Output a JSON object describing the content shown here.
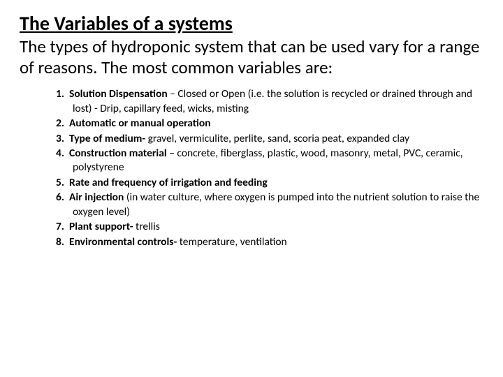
{
  "title": "The Variables of a systems",
  "intro": "The types of hydroponic system that can be used vary for a range of reasons. The most common variables are:",
  "items": [
    {
      "num": "1.",
      "lead": "Solution Dispensation",
      "rest": " – Closed or Open (i.e. the solution is recycled or drained through and lost) - Drip, capillary feed, wicks, misting"
    },
    {
      "num": "2.",
      "lead": "Automatic or manual operation",
      "rest": ""
    },
    {
      "num": "3.",
      "lead": "Type of medium-",
      "rest": " gravel, vermiculite, perlite, sand, scoria peat, expanded clay"
    },
    {
      "num": "4.",
      "lead": "Construction material",
      "rest": " – concrete, fiberglass, plastic, wood, masonry, metal, PVC, ceramic, polystyrene"
    },
    {
      "num": "5.",
      "lead": "Rate and frequency of irrigation and feeding",
      "rest": ""
    },
    {
      "num": "6.",
      "lead": "Air injection",
      "rest": " (in water culture, where oxygen is pumped into the nutrient solution to raise the oxygen level)"
    },
    {
      "num": "7.",
      "lead": "Plant support-",
      "rest": " trellis"
    },
    {
      "num": "8.",
      "lead": "Environmental controls-",
      "rest": " temperature, ventilation"
    }
  ]
}
